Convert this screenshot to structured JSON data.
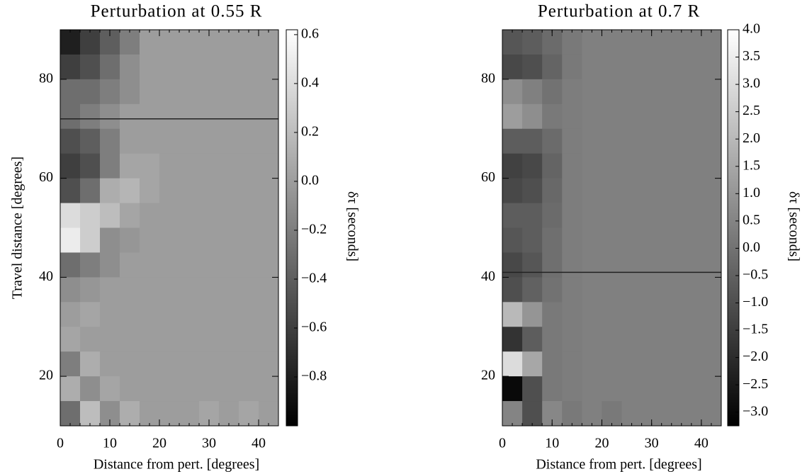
{
  "chart_data": [
    {
      "type": "heatmap",
      "title": "Perturbation at 0.55 R",
      "x_label": "Distance from pert. [degrees]",
      "y_label": "Travel distance [degrees]",
      "colorbar_label": "δτ [seconds]",
      "xlim": [
        0,
        44
      ],
      "ylim": [
        10,
        90
      ],
      "xticks": [
        0,
        10,
        20,
        30,
        40
      ],
      "yticks": [
        20,
        40,
        60,
        80
      ],
      "clim": [
        -1.0,
        0.62
      ],
      "cticks": [
        0.6,
        0.4,
        0.2,
        {
          "value": 0,
          "label": "0.0"
        },
        {
          "value": -0.2,
          "label": "−0.2"
        },
        {
          "value": -0.4,
          "label": "−0.4"
        },
        {
          "value": -0.6,
          "label": "−0.6"
        },
        {
          "value": -0.8,
          "label": "−0.8"
        }
      ],
      "colormap": "gray",
      "hline": 72,
      "xbins": [
        0,
        4,
        8,
        12,
        16,
        20,
        24,
        28,
        32,
        36,
        40,
        44
      ],
      "ybins": [
        90,
        85,
        80,
        75,
        70,
        65,
        60,
        55,
        50,
        45,
        40,
        35,
        30,
        25,
        20,
        15,
        10
      ],
      "z": [
        [
          -0.8,
          -0.6,
          -0.4,
          -0.2,
          0,
          0,
          0,
          0,
          0,
          0,
          0
        ],
        [
          -0.6,
          -0.5,
          -0.3,
          -0.1,
          0,
          0,
          0,
          0,
          0,
          0,
          0
        ],
        [
          -0.3,
          -0.3,
          -0.2,
          -0.1,
          0,
          0,
          0,
          0,
          0,
          0,
          0
        ],
        [
          -0.3,
          -0.2,
          -0.1,
          0,
          0,
          0,
          0,
          0,
          0,
          0,
          0
        ],
        [
          -0.5,
          -0.4,
          -0.2,
          0,
          0,
          0,
          0,
          0,
          0,
          0,
          0
        ],
        [
          -0.6,
          -0.5,
          -0.2,
          0.05,
          0.05,
          0,
          0,
          0,
          0,
          0,
          0
        ],
        [
          -0.5,
          -0.3,
          0.1,
          0.15,
          0.05,
          0,
          0,
          0,
          0,
          0,
          0
        ],
        [
          0.4,
          0.3,
          0.2,
          0.05,
          0,
          0,
          0,
          0,
          0,
          0,
          0
        ],
        [
          0.5,
          0.3,
          -0.1,
          -0.05,
          0,
          0,
          0,
          0,
          0,
          0,
          0
        ],
        [
          -0.3,
          -0.2,
          -0.1,
          0,
          0,
          0,
          0,
          0,
          0,
          0,
          0
        ],
        [
          -0.1,
          -0.05,
          0,
          0,
          0,
          0,
          0,
          0,
          0,
          0,
          0
        ],
        [
          0,
          0.05,
          0,
          0,
          0,
          0,
          0,
          0,
          0,
          0,
          0
        ],
        [
          0.05,
          0,
          0,
          0,
          0,
          0,
          0,
          0,
          0,
          0,
          0
        ],
        [
          -0.2,
          0.1,
          0,
          0,
          0,
          0,
          0,
          0,
          0,
          0,
          0
        ],
        [
          0.1,
          -0.1,
          0.05,
          0,
          0,
          0,
          0,
          0,
          0,
          0,
          0
        ],
        [
          -0.3,
          0.2,
          -0.1,
          0.1,
          0,
          0,
          0,
          0.05,
          0,
          0.05,
          0
        ]
      ]
    },
    {
      "type": "heatmap",
      "title": "Perturbation at 0.7 R",
      "x_label": "Distance from pert. [degrees]",
      "colorbar_label": "δτ [seconds]",
      "xlim": [
        0,
        44
      ],
      "ylim": [
        10,
        90
      ],
      "xticks": [
        0,
        10,
        20,
        30,
        40
      ],
      "yticks": [
        20,
        40,
        60,
        80
      ],
      "clim": [
        -3.25,
        4.0
      ],
      "cticks": [
        {
          "value": 4,
          "label": "4.0"
        },
        3.5,
        {
          "value": 3,
          "label": "3.0"
        },
        2.5,
        {
          "value": 2,
          "label": "2.0"
        },
        1.5,
        {
          "value": 1,
          "label": "1.0"
        },
        0.5,
        {
          "value": 0,
          "label": "0.0"
        },
        {
          "value": -0.5,
          "label": "−0.5"
        },
        {
          "value": -1,
          "label": "−1.0"
        },
        {
          "value": -1.5,
          "label": "−1.5"
        },
        {
          "value": -2,
          "label": "−2.0"
        },
        {
          "value": -2.5,
          "label": "−2.5"
        },
        {
          "value": -3,
          "label": "−3.0"
        }
      ],
      "colormap": "gray",
      "hline": 41,
      "xbins": [
        0,
        4,
        8,
        12,
        16,
        20,
        24,
        28,
        32,
        36,
        40,
        44
      ],
      "ybins": [
        90,
        85,
        80,
        75,
        70,
        65,
        60,
        55,
        50,
        45,
        40,
        35,
        30,
        25,
        20,
        15,
        10
      ],
      "z": [
        [
          -0.8,
          -0.6,
          -0.2,
          0.2,
          0.4,
          0.4,
          0.4,
          0.4,
          0.4,
          0.4,
          0.4
        ],
        [
          -1.2,
          -1.0,
          -0.4,
          0.2,
          0.4,
          0.4,
          0.4,
          0.4,
          0.4,
          0.4,
          0.4
        ],
        [
          0.8,
          0.4,
          0,
          0.3,
          0.4,
          0.4,
          0.4,
          0.4,
          0.4,
          0.4,
          0.4
        ],
        [
          1.2,
          0.8,
          0.2,
          0.3,
          0.4,
          0.4,
          0.4,
          0.4,
          0.4,
          0.4,
          0.4
        ],
        [
          -0.6,
          -0.6,
          -0.2,
          0.3,
          0.4,
          0.4,
          0.4,
          0.4,
          0.4,
          0.4,
          0.4
        ],
        [
          -1.4,
          -1.2,
          -0.4,
          0.3,
          0.4,
          0.4,
          0.4,
          0.4,
          0.4,
          0.4,
          0.4
        ],
        [
          -1.2,
          -1.0,
          -0.3,
          0.3,
          0.4,
          0.4,
          0.4,
          0.4,
          0.4,
          0.4,
          0.4
        ],
        [
          -0.6,
          -0.6,
          -0.2,
          0.3,
          0.4,
          0.4,
          0.4,
          0.4,
          0.4,
          0.4,
          0.4
        ],
        [
          -0.8,
          -0.6,
          -0.1,
          0.3,
          0.4,
          0.4,
          0.4,
          0.4,
          0.4,
          0.4,
          0.4
        ],
        [
          -1.2,
          -0.8,
          -0.1,
          0.3,
          0.4,
          0.4,
          0.4,
          0.4,
          0.4,
          0.4,
          0.4
        ],
        [
          -1.0,
          -0.5,
          0,
          0.3,
          0.4,
          0.4,
          0.4,
          0.4,
          0.4,
          0.4,
          0.4
        ],
        [
          2.0,
          1.0,
          0.2,
          0.3,
          0.4,
          0.4,
          0.4,
          0.4,
          0.4,
          0.4,
          0.4
        ],
        [
          -1.8,
          -0.6,
          0.2,
          0.3,
          0.4,
          0.4,
          0.4,
          0.4,
          0.4,
          0.4,
          0.4
        ],
        [
          3.0,
          1.5,
          0.2,
          0.3,
          0.4,
          0.4,
          0.4,
          0.4,
          0.4,
          0.4,
          0.4
        ],
        [
          -3.0,
          -1.0,
          0.2,
          0.3,
          0.4,
          0.4,
          0.4,
          0.4,
          0.4,
          0.4,
          0.4
        ],
        [
          0.5,
          -1.0,
          0.6,
          0.2,
          0.4,
          0.2,
          0.4,
          0.4,
          0.4,
          0.4,
          0.4
        ]
      ]
    }
  ]
}
